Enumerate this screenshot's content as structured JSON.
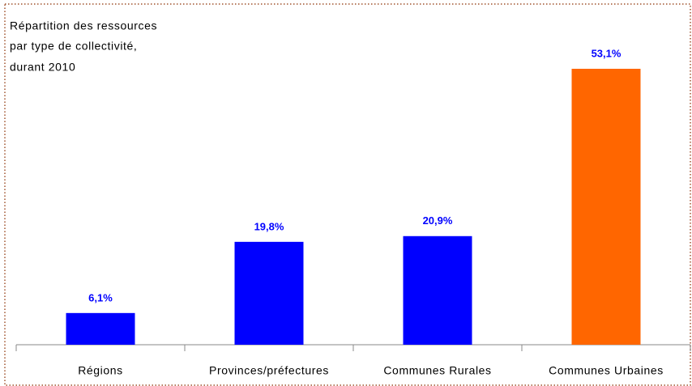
{
  "chart_data": {
    "type": "bar",
    "title": [
      "Répartition des ressources",
      "par type de collectivité,",
      "durant 2010"
    ],
    "categories": [
      "Régions",
      "Provinces/préfectures",
      "Communes Rurales",
      "Communes Urbaines"
    ],
    "values": [
      6.1,
      19.8,
      20.9,
      53.1
    ],
    "value_labels": [
      "6,1%",
      "19,8%",
      "20,9%",
      "53,1%"
    ],
    "colors": [
      "#0000ff",
      "#0000ff",
      "#0000ff",
      "#ff6600"
    ]
  }
}
